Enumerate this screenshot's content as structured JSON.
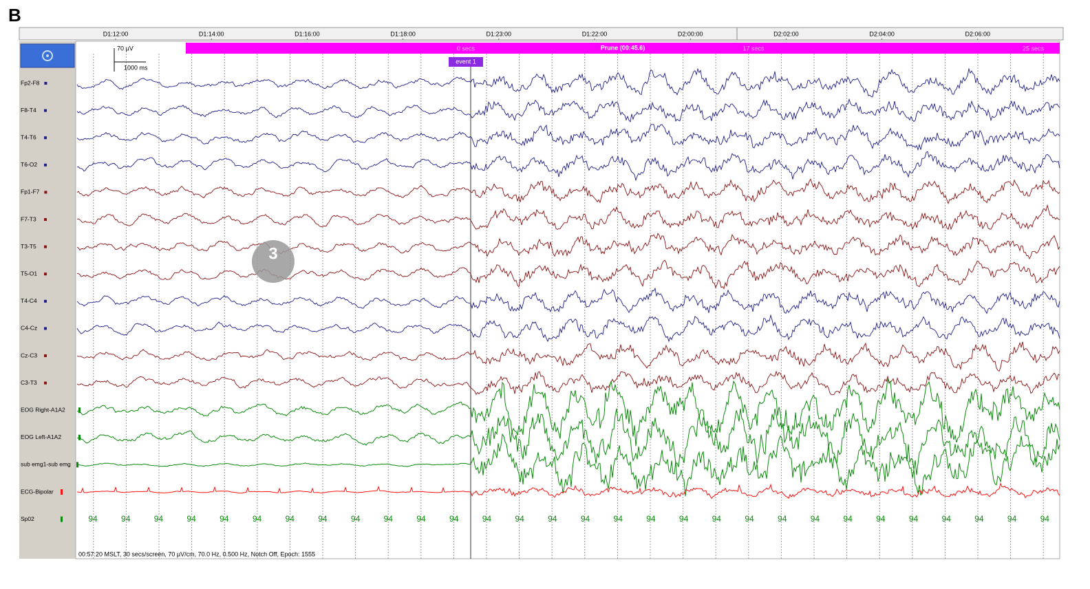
{
  "panel_label": "B",
  "timeline": {
    "ticks": [
      "D1:12:00",
      "D1:14:00",
      "D1:16:00",
      "D1:18:00",
      "D1:23:00",
      "D1:22:00",
      "D2:00:00",
      "D2:02:00",
      "D2:04:00",
      "D2:06:00"
    ]
  },
  "scale": {
    "amplitude": "70 µV",
    "time": "1000 ms"
  },
  "prune_bar": {
    "start": "0 secs",
    "title": "Prune (00:45.6)",
    "mid": "17 secs",
    "end": "25 secs"
  },
  "event_marker": "event 1",
  "overlay_badge": "3",
  "channels": [
    {
      "name": "Fp2-F8",
      "color": "#1c1c8a"
    },
    {
      "name": "F8-T4",
      "color": "#1c1c8a"
    },
    {
      "name": "T4-T6",
      "color": "#1c1c8a"
    },
    {
      "name": "T6-O2",
      "color": "#1c1c8a"
    },
    {
      "name": "Fp1-F7",
      "color": "#8b1010"
    },
    {
      "name": "F7-T3",
      "color": "#8b1010"
    },
    {
      "name": "T3-T5",
      "color": "#8b1010"
    },
    {
      "name": "T5-O1",
      "color": "#8b1010"
    },
    {
      "name": "T4-C4",
      "color": "#1c1c8a"
    },
    {
      "name": "C4-Cz",
      "color": "#1c1c8a"
    },
    {
      "name": "Cz-C3",
      "color": "#8b1010"
    },
    {
      "name": "C3-T3",
      "color": "#8b1010"
    },
    {
      "name": "EOG Right-A1A2",
      "color": "#0a8a0a"
    },
    {
      "name": "EOG Left-A1A2",
      "color": "#0a8a0a"
    },
    {
      "name": "sub emg1-sub emg",
      "color": "#0a8a0a"
    },
    {
      "name": "ECG-Bipolar",
      "color": "#ff1010"
    },
    {
      "name": "Sp02",
      "color": "#0a8a0a"
    }
  ],
  "spo2_values": [
    94,
    94,
    94,
    94,
    94,
    94,
    94,
    94,
    94,
    94,
    94,
    94,
    94,
    94,
    94,
    94,
    94,
    94,
    94,
    94,
    94,
    94,
    94,
    94,
    94,
    94,
    94,
    94,
    94,
    94
  ],
  "status": "00:57:20 MSLT, 30 secs/screen, 70 µV/cm, 70.0 Hz, 0.500 Hz, Notch Off, Epoch: 1555"
}
